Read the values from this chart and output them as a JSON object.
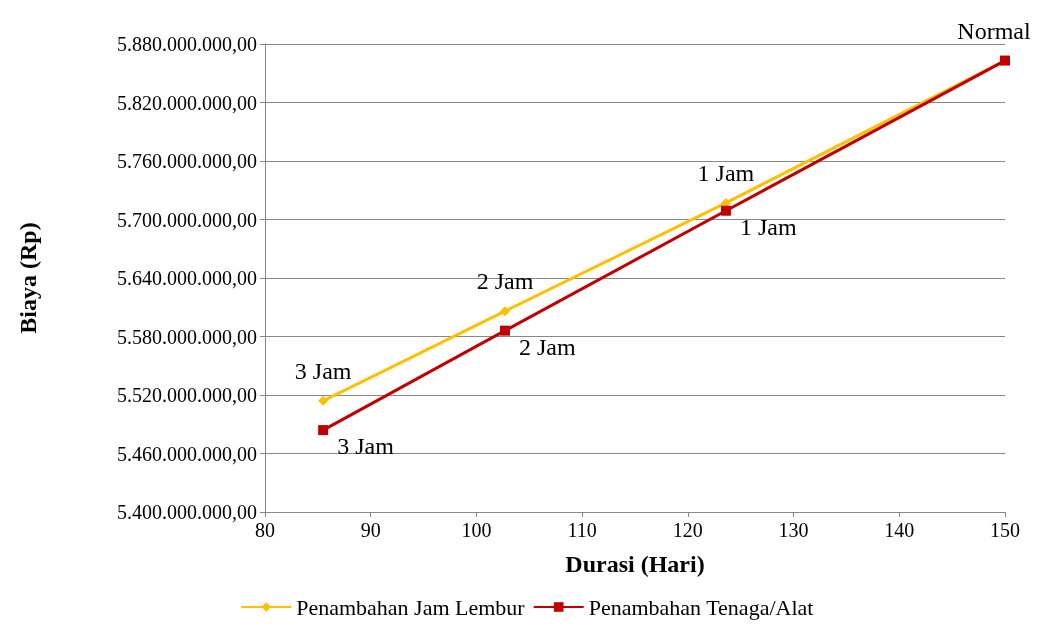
{
  "chart_data": {
    "type": "line",
    "xlabel": "Durasi (Hari)",
    "ylabel": "Biaya (Rp)",
    "xlim": [
      80,
      150
    ],
    "xticks": [
      80,
      90,
      100,
      110,
      120,
      130,
      140,
      150
    ],
    "ylim": [
      5400000000,
      5880000000
    ],
    "yticks": [
      {
        "value": 5400000000,
        "label": "5.400.000.000,00"
      },
      {
        "value": 5460000000,
        "label": "5.460.000.000,00"
      },
      {
        "value": 5520000000,
        "label": "5.520.000.000,00"
      },
      {
        "value": 5580000000,
        "label": "5.580.000.000,00"
      },
      {
        "value": 5640000000,
        "label": "5.640.000.000,00"
      },
      {
        "value": 5700000000,
        "label": "5.700.000.000,00"
      },
      {
        "value": 5760000000,
        "label": "5.760.000.000,00"
      },
      {
        "value": 5820000000,
        "label": "5.820.000.000,00"
      },
      {
        "value": 5880000000,
        "label": "5.880.000.000,00"
      }
    ],
    "grid": "y",
    "legend": "bottom",
    "series": [
      {
        "name": "Penambahan Jam Lembur",
        "color": "#ffc000",
        "marker": "diamond",
        "x": [
          85.5,
          102.7,
          123.6,
          150
        ],
        "values": [
          5514000000,
          5606000000,
          5717000000,
          5863000000
        ]
      },
      {
        "name": "Penambahan Tenaga/Alat",
        "color": "#c00000",
        "marker": "square",
        "x": [
          85.5,
          102.7,
          123.6,
          150
        ],
        "values": [
          5484000000,
          5586000000,
          5709000000,
          5863000000
        ]
      }
    ],
    "annotations": [
      {
        "text": "3 Jam",
        "x": 85.5,
        "y": 5514000000
      },
      {
        "text": "3 Jam",
        "x": 85.5,
        "y": 5484000000
      },
      {
        "text": "2 Jam",
        "x": 102.7,
        "y": 5606000000
      },
      {
        "text": "2 Jam",
        "x": 102.7,
        "y": 5586000000
      },
      {
        "text": "1 Jam",
        "x": 123.6,
        "y": 5717000000
      },
      {
        "text": "1 Jam",
        "x": 123.6,
        "y": 5709000000
      },
      {
        "text": "Normal",
        "x": 150,
        "y": 5863000000
      }
    ]
  }
}
